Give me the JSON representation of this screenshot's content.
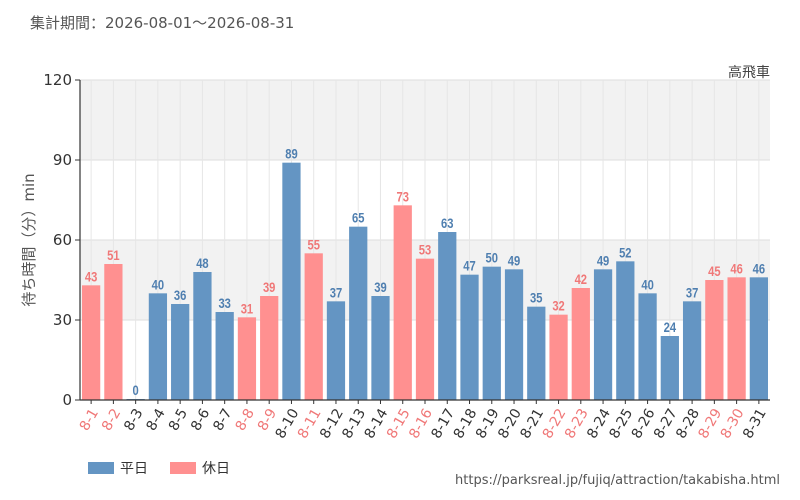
{
  "header": {
    "period": "集計期間：2026-08-01～2026-08-31",
    "attraction": "高飛車"
  },
  "legend": {
    "weekday_label": "平日",
    "holiday_label": "休日"
  },
  "footer": {
    "source_url": "https://parksreal.jp/fujiq/attraction/takabisha.html"
  },
  "colors": {
    "weekday": "#6495c3",
    "holiday": "#ff9090",
    "band": "#f2f2f2",
    "axis": "#333333",
    "grid": "#dddddd"
  },
  "chart_data": {
    "type": "bar",
    "ylabel": "待ち時間（分）min",
    "ylim": [
      0,
      120
    ],
    "yticks": [
      0,
      30,
      60,
      90,
      120
    ],
    "categories": [
      "8-1",
      "8-2",
      "8-3",
      "8-4",
      "8-5",
      "8-6",
      "8-7",
      "8-8",
      "8-9",
      "8-10",
      "8-11",
      "8-12",
      "8-13",
      "8-14",
      "8-15",
      "8-16",
      "8-17",
      "8-18",
      "8-19",
      "8-20",
      "8-21",
      "8-22",
      "8-23",
      "8-24",
      "8-25",
      "8-26",
      "8-27",
      "8-28",
      "8-29",
      "8-30",
      "8-31"
    ],
    "values": [
      43,
      51,
      0,
      40,
      36,
      48,
      33,
      31,
      39,
      89,
      55,
      37,
      65,
      39,
      73,
      53,
      63,
      47,
      50,
      49,
      35,
      32,
      42,
      49,
      52,
      40,
      24,
      37,
      45,
      46,
      46
    ],
    "day_type": [
      "holiday",
      "holiday",
      "weekday",
      "weekday",
      "weekday",
      "weekday",
      "weekday",
      "holiday",
      "holiday",
      "weekday",
      "holiday",
      "weekday",
      "weekday",
      "weekday",
      "holiday",
      "holiday",
      "weekday",
      "weekday",
      "weekday",
      "weekday",
      "weekday",
      "holiday",
      "holiday",
      "weekday",
      "weekday",
      "weekday",
      "weekday",
      "weekday",
      "holiday",
      "holiday",
      "weekday"
    ],
    "series": [
      {
        "name": "平日",
        "type": "weekday"
      },
      {
        "name": "休日",
        "type": "holiday"
      }
    ],
    "grid": true,
    "legend_position": "bottom-left"
  }
}
